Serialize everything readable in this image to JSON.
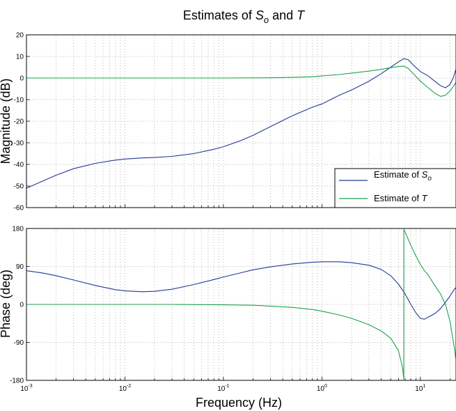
{
  "chart_data": [
    {
      "type": "line",
      "title": "Estimates of So and T",
      "title_parts": {
        "prefix": "Estimates of ",
        "sym": "S",
        "sub": "o",
        "mid": " and ",
        "sym2": "T"
      },
      "xlabel": "",
      "ylabel": "Magnitude (dB)",
      "xscale": "log",
      "xlim": [
        0.001,
        23
      ],
      "ylim": [
        -60,
        20
      ],
      "yticks": [
        20,
        10,
        0,
        -10,
        -20,
        -30,
        -40,
        -50,
        -60
      ],
      "grid": true,
      "legend_position": "bottom-right",
      "legend": [
        {
          "prefix": "Estimate of ",
          "sym": "S",
          "sub": "o"
        },
        {
          "prefix": "Estimate of ",
          "sym": "T",
          "sub": ""
        }
      ],
      "series": [
        {
          "color": "#1f3a93",
          "x": [
            0.001,
            0.0015,
            0.002,
            0.003,
            0.005,
            0.008,
            0.01,
            0.015,
            0.02,
            0.03,
            0.05,
            0.08,
            0.1,
            0.15,
            0.2,
            0.3,
            0.5,
            0.8,
            1,
            1.5,
            2,
            3,
            4,
            5,
            6,
            6.8,
            7.5,
            8.5,
            10,
            12,
            14,
            16,
            18,
            20,
            21.5,
            23
          ],
          "y": [
            -51,
            -47.5,
            -45,
            -42,
            -39.5,
            -38,
            -37.5,
            -37,
            -36.8,
            -36.3,
            -35,
            -33,
            -31.8,
            -29,
            -26.5,
            -22.5,
            -17.5,
            -13.5,
            -12,
            -8,
            -5.5,
            -1.5,
            2,
            5,
            7.5,
            9,
            8.5,
            6,
            3,
            1,
            -1.5,
            -3.5,
            -4.5,
            -3,
            0,
            4
          ]
        },
        {
          "color": "#1aa34a",
          "x": [
            0.001,
            0.01,
            0.1,
            0.3,
            0.5,
            0.8,
            1,
            1.5,
            2,
            3,
            4,
            5,
            6,
            6.8,
            7.5,
            8.5,
            10,
            12,
            14,
            16,
            18,
            20,
            21.5,
            23
          ],
          "y": [
            0,
            0,
            0,
            0.1,
            0.3,
            0.6,
            1,
            1.6,
            2.3,
            3.2,
            4,
            4.8,
            5.3,
            5.5,
            4.5,
            2,
            -1.5,
            -4.5,
            -7,
            -8.5,
            -8,
            -6,
            -4,
            -2
          ]
        }
      ]
    },
    {
      "type": "line",
      "xlabel": "Frequency  (Hz)",
      "ylabel": "Phase (deg)",
      "xscale": "log",
      "xlim": [
        0.001,
        23
      ],
      "xticks": [
        {
          "value": 0.001,
          "base": "10",
          "exp": "-3"
        },
        {
          "value": 0.01,
          "base": "10",
          "exp": "-2"
        },
        {
          "value": 0.1,
          "base": "10",
          "exp": "-1"
        },
        {
          "value": 1,
          "base": "10",
          "exp": "0"
        },
        {
          "value": 10,
          "base": "10",
          "exp": "1"
        }
      ],
      "ylim": [
        -180,
        180
      ],
      "yticks": [
        180,
        90,
        0,
        -90,
        -180
      ],
      "grid": true,
      "series": [
        {
          "color": "#1f3a93",
          "x": [
            0.001,
            0.0015,
            0.002,
            0.003,
            0.005,
            0.008,
            0.01,
            0.015,
            0.02,
            0.03,
            0.05,
            0.08,
            0.1,
            0.15,
            0.2,
            0.3,
            0.5,
            0.8,
            1,
            1.5,
            2,
            3,
            4,
            5,
            6,
            7,
            8,
            9,
            10,
            11,
            12,
            14,
            16,
            18,
            20,
            22,
            23
          ],
          "y": [
            80,
            74,
            68,
            58,
            45,
            35,
            32,
            30,
            31,
            36,
            47,
            59,
            65,
            75,
            82,
            89,
            96,
            100,
            101,
            101,
            99,
            93,
            83,
            68,
            48,
            25,
            0,
            -20,
            -33,
            -35,
            -30,
            -22,
            -10,
            5,
            20,
            35,
            40
          ]
        },
        {
          "color": "#1aa34a",
          "x": [
            0.001,
            0.01,
            0.03,
            0.1,
            0.2,
            0.3,
            0.5,
            0.8,
            1,
            1.5,
            2,
            3,
            4,
            5,
            6,
            6.6,
            6.79,
            6.8,
            7.2,
            8,
            9,
            10,
            11,
            12,
            14,
            16,
            18,
            20,
            22,
            23
          ],
          "y": [
            0,
            0,
            0,
            -1,
            -2,
            -4,
            -7,
            -12,
            -16,
            -25,
            -33,
            -48,
            -63,
            -80,
            -110,
            -150,
            -178,
            178,
            165,
            140,
            115,
            95,
            80,
            70,
            45,
            25,
            0,
            -40,
            -100,
            -130
          ]
        }
      ]
    }
  ]
}
